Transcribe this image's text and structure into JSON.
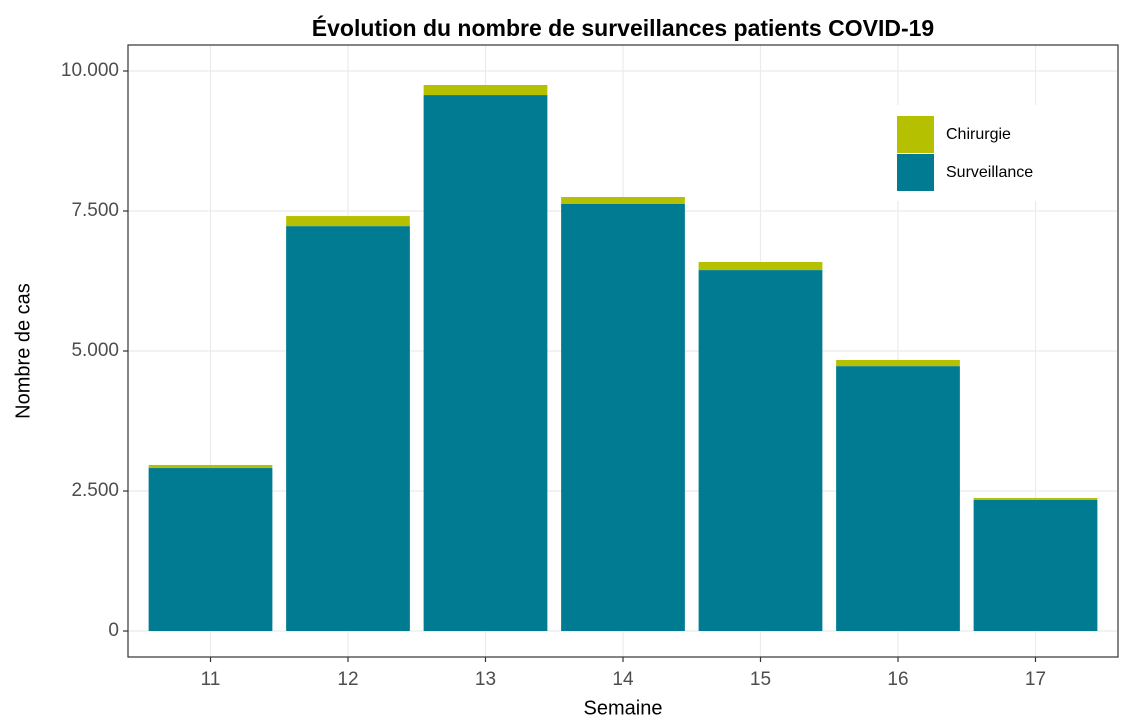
{
  "chart_data": {
    "type": "stacked_bar",
    "title": "Évolution du nombre de surveillances patients COVID-19",
    "x_label": "Semaine",
    "y_label": "Nombre de cas",
    "categories": [
      "11",
      "12",
      "13",
      "14",
      "15",
      "16",
      "17"
    ],
    "series": [
      {
        "name": "Surveillance",
        "color": "#007b91",
        "values": [
          2910,
          7230,
          9570,
          7625,
          6445,
          4730,
          2340
        ]
      },
      {
        "name": "Chirurgie",
        "color": "#b5c000",
        "values": [
          55,
          180,
          180,
          125,
          145,
          110,
          35
        ]
      }
    ],
    "ylim": [
      -464,
      10464
    ],
    "yticks": [
      0,
      {
        "value": 2500,
        "label": "2.500"
      },
      {
        "value": 5000,
        "label": "5.000"
      },
      {
        "value": 7500,
        "label": "7.500"
      },
      {
        "value": 10000,
        "label": "10.000"
      }
    ],
    "grid": true,
    "legend_position": "inside-top-right"
  }
}
